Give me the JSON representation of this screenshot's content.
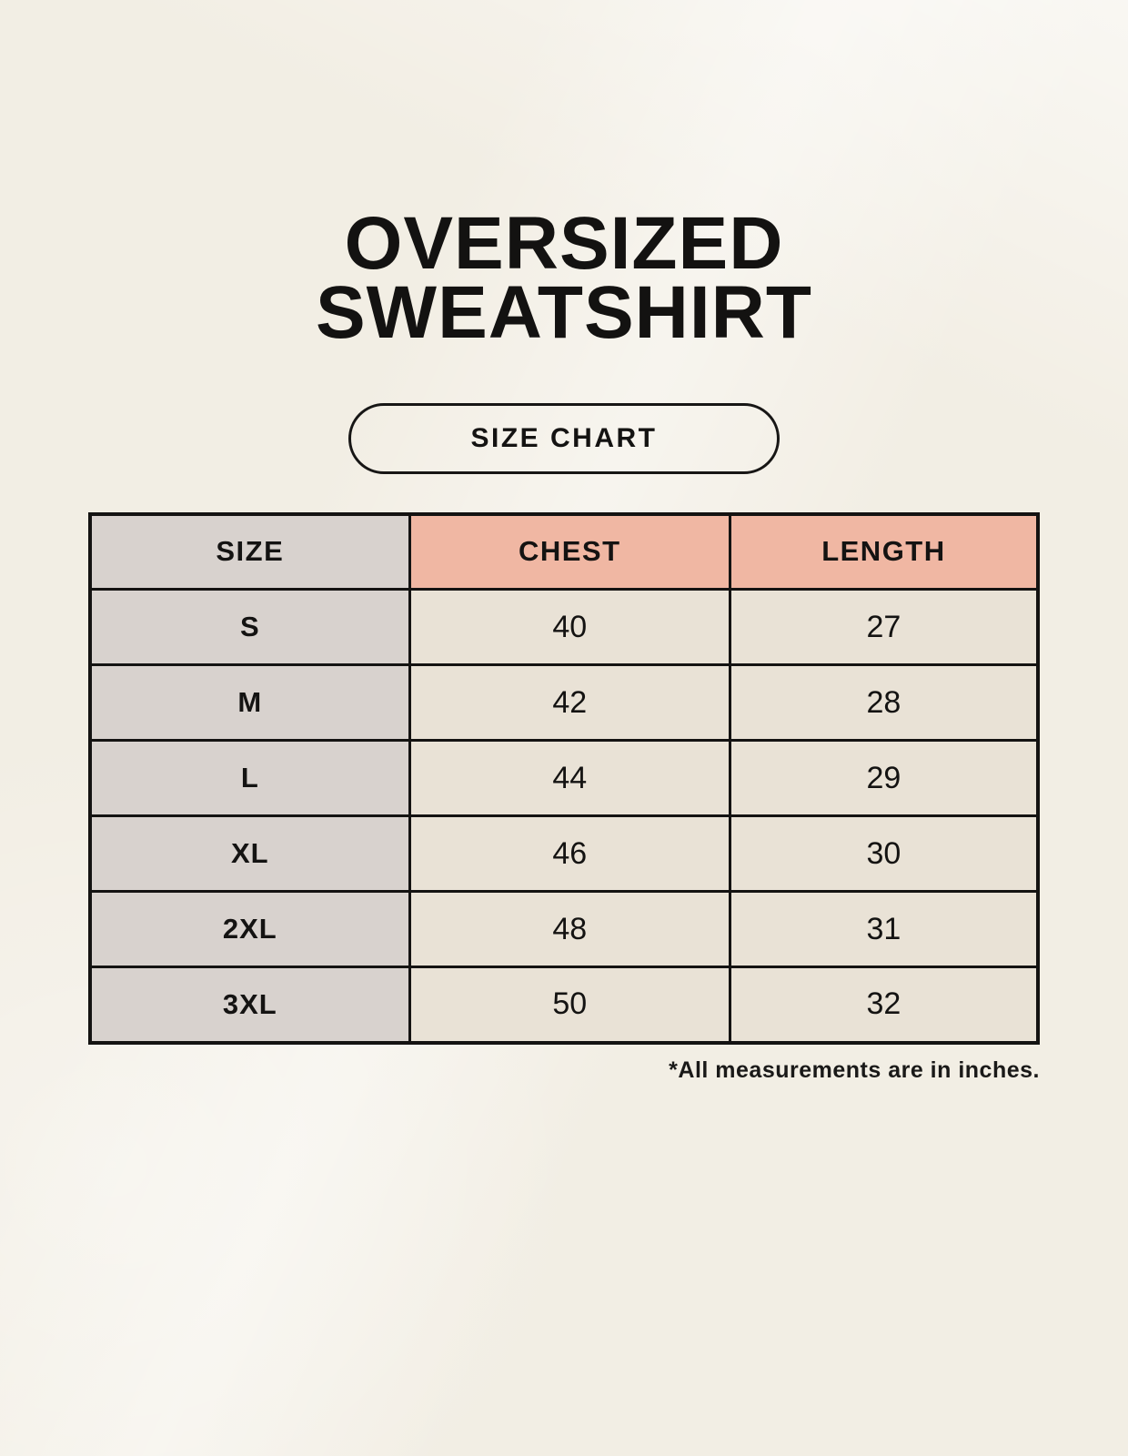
{
  "title": {
    "line1": "OVERSIZED",
    "line2": "SWEATSHIRT"
  },
  "badge": {
    "label": "SIZE CHART"
  },
  "footnote": "*All measurements are in inches.",
  "colors": {
    "page_background": "#f2eee4",
    "header_size_bg": "#d8d2ce",
    "header_measure_bg": "#f0b7a3",
    "size_column_bg": "#d8d2ce",
    "value_cell_bg": "#e9e2d6",
    "border": "#141312",
    "text": "#141312"
  },
  "chart_data": {
    "type": "table",
    "title": "OVERSIZED SWEATSHIRT",
    "columns": [
      "SIZE",
      "CHEST",
      "LENGTH"
    ],
    "rows": [
      [
        "S",
        40,
        27
      ],
      [
        "M",
        42,
        28
      ],
      [
        "L",
        44,
        29
      ],
      [
        "XL",
        46,
        30
      ],
      [
        "2XL",
        48,
        31
      ],
      [
        "3XL",
        50,
        32
      ]
    ],
    "units": "inches",
    "note": "*All measurements are in inches."
  }
}
